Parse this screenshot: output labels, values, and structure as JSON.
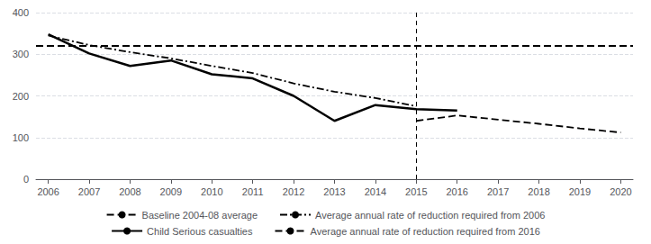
{
  "chart_data": {
    "type": "line",
    "xlim": [
      2005.7,
      2020.3
    ],
    "xticks": [
      2006,
      2007,
      2008,
      2009,
      2010,
      2011,
      2012,
      2013,
      2014,
      2015,
      2016,
      2017,
      2018,
      2019,
      2020
    ],
    "ylim": [
      0,
      400
    ],
    "yticks": [
      0,
      100,
      200,
      300,
      400
    ],
    "grid": true,
    "legend": "bottom",
    "vlines": [
      2015
    ],
    "series": [
      {
        "name": "Baseline 2004-08 average",
        "type": "hline",
        "y": 320,
        "color": "#000000",
        "line_style": "dashed"
      },
      {
        "name": "Average annual rate of reduction required from 2006",
        "type": "line",
        "x": [
          2006,
          2007,
          2008,
          2009,
          2010,
          2011,
          2012,
          2013,
          2014,
          2015
        ],
        "values": [
          345,
          322,
          305,
          290,
          272,
          255,
          230,
          210,
          195,
          175
        ],
        "color": "#000000",
        "line_style": "dashdot"
      },
      {
        "name": "Child Serious casualties",
        "type": "line",
        "x": [
          2006,
          2007,
          2008,
          2009,
          2010,
          2011,
          2012,
          2013,
          2014,
          2015,
          2016
        ],
        "values": [
          348,
          302,
          272,
          285,
          252,
          242,
          200,
          140,
          178,
          168,
          165
        ],
        "color": "#000000",
        "line_style": "solid"
      },
      {
        "name": "Average annual rate of reduction required from 2016",
        "type": "line",
        "x": [
          2015,
          2016,
          2017,
          2018,
          2019,
          2020
        ],
        "values": [
          140,
          153,
          143,
          133,
          122,
          112
        ],
        "color": "#000000",
        "line_style": "dashed"
      }
    ]
  }
}
